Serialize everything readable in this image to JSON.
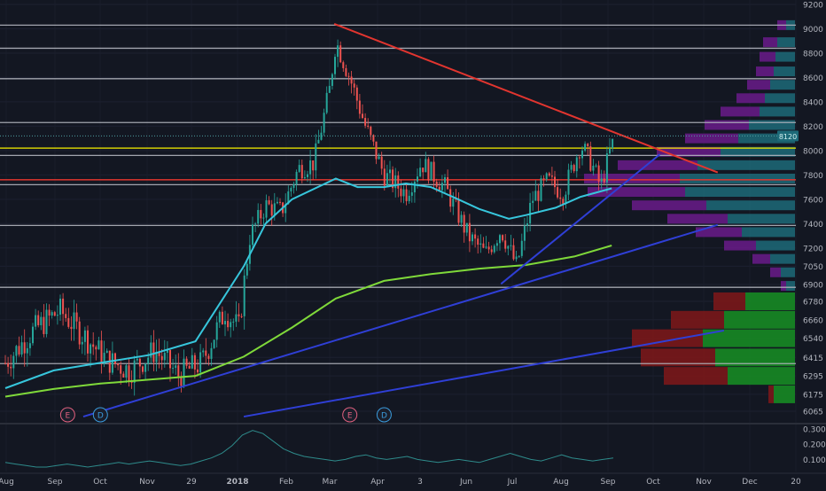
{
  "chart_data": {
    "type": "candlestick",
    "price_axis": {
      "ticks": [
        "9200",
        "9000",
        "8800",
        "8600",
        "8400",
        "8200",
        "8000",
        "7800",
        "7600",
        "7400",
        "7200",
        "7050",
        "6900",
        "6780",
        "6660",
        "6540",
        "6415",
        "6295",
        "6175",
        "6065"
      ],
      "current_price": "8120",
      "current_label": "8120"
    },
    "time_axis": {
      "ticks": [
        "Aug",
        "Sep",
        "Oct",
        "Nov",
        "29",
        "2018",
        "Feb",
        "Mar",
        "Apr",
        "3",
        "Jun",
        "Jul",
        "Aug",
        "Sep",
        "Oct",
        "Nov",
        "Dec",
        "20"
      ]
    },
    "horizontal_levels": [
      {
        "price": 9030,
        "color": "#b2b5be"
      },
      {
        "price": 8840,
        "color": "#b2b5be"
      },
      {
        "price": 8590,
        "color": "#b2b5be"
      },
      {
        "price": 8230,
        "color": "#b2b5be"
      },
      {
        "price": 8020,
        "color": "#e8e100"
      },
      {
        "price": 7960,
        "color": "#b2b5be"
      },
      {
        "price": 7760,
        "color": "#e2352f"
      },
      {
        "price": 7720,
        "color": "#b2b5be"
      },
      {
        "price": 7385,
        "color": "#b2b5be"
      },
      {
        "price": 6880,
        "color": "#b2b5be"
      },
      {
        "price": 6375,
        "color": "#b2b5be"
      }
    ],
    "moving_averages": [
      {
        "color": "#37c6dc",
        "points": [
          [
            "2017-08-01",
            6215
          ],
          [
            "2017-09-01",
            6330
          ],
          [
            "2017-10-01",
            6380
          ],
          [
            "2017-11-01",
            6430
          ],
          [
            "2017-12-01",
            6520
          ],
          [
            "2018-01-01",
            7050
          ],
          [
            "2018-01-15",
            7400
          ],
          [
            "2018-02-01",
            7600
          ],
          [
            "2018-03-01",
            7770
          ],
          [
            "2018-03-15",
            7700
          ],
          [
            "2018-04-01",
            7700
          ],
          [
            "2018-04-15",
            7730
          ],
          [
            "2018-05-01",
            7700
          ],
          [
            "2018-05-15",
            7620
          ],
          [
            "2018-06-01",
            7520
          ],
          [
            "2018-06-20",
            7440
          ],
          [
            "2018-07-01",
            7470
          ],
          [
            "2018-07-20",
            7530
          ],
          [
            "2018-08-05",
            7620
          ],
          [
            "2018-08-25",
            7690
          ]
        ]
      },
      {
        "color": "#7fd93a",
        "points": [
          [
            "2017-08-01",
            6160
          ],
          [
            "2017-09-01",
            6210
          ],
          [
            "2017-10-01",
            6245
          ],
          [
            "2017-11-01",
            6270
          ],
          [
            "2017-12-01",
            6295
          ],
          [
            "2018-01-01",
            6420
          ],
          [
            "2018-02-01",
            6610
          ],
          [
            "2018-03-01",
            6800
          ],
          [
            "2018-04-01",
            6930
          ],
          [
            "2018-05-01",
            6985
          ],
          [
            "2018-06-01",
            7030
          ],
          [
            "2018-07-01",
            7060
          ],
          [
            "2018-08-01",
            7130
          ],
          [
            "2018-08-25",
            7220
          ]
        ]
      }
    ],
    "trend_lines": [
      {
        "color": "#e2352f",
        "from": [
          "2018-02-28",
          9040
        ],
        "to": [
          "2018-11-01",
          7820
        ]
      },
      {
        "color": "#2f3fd6",
        "from": [
          "2017-09-20",
          6030
        ],
        "to": [
          "2018-11-01",
          7390
        ]
      },
      {
        "color": "#2f3fd6",
        "from": [
          "2018-06-15",
          6905
        ],
        "to": [
          "2018-09-25",
          7970
        ]
      },
      {
        "color": "#2f3fd6",
        "from": [
          "2018-01-01",
          6030
        ],
        "to": [
          "2018-11-05",
          6590
        ]
      }
    ],
    "events": [
      {
        "date": "2017-09-10",
        "label": "E",
        "kind": "earnings"
      },
      {
        "date": "2017-10-01",
        "label": "D",
        "kind": "dividend"
      },
      {
        "date": "2018-03-10",
        "label": "E",
        "kind": "earnings"
      },
      {
        "date": "2018-04-01",
        "label": "D",
        "kind": "dividend"
      }
    ],
    "volume_profile": {
      "upper": [
        {
          "y": 9030,
          "up": 0.05,
          "down": 0.05
        },
        {
          "y": 8890,
          "up": 0.1,
          "down": 0.08
        },
        {
          "y": 8770,
          "up": 0.11,
          "down": 0.09
        },
        {
          "y": 8650,
          "up": 0.12,
          "down": 0.1
        },
        {
          "y": 8540,
          "up": 0.14,
          "down": 0.13
        },
        {
          "y": 8430,
          "up": 0.17,
          "down": 0.16
        },
        {
          "y": 8320,
          "up": 0.2,
          "down": 0.22
        },
        {
          "y": 8210,
          "up": 0.26,
          "down": 0.25
        },
        {
          "y": 8100,
          "up": 0.32,
          "down": 0.3
        },
        {
          "y": 7990,
          "up": 0.42,
          "down": 0.36
        },
        {
          "y": 7880,
          "up": 0.55,
          "down": 0.45
        },
        {
          "y": 7770,
          "up": 0.65,
          "down": 0.54
        },
        {
          "y": 7660,
          "up": 0.62,
          "down": 0.55
        },
        {
          "y": 7550,
          "up": 0.5,
          "down": 0.42
        },
        {
          "y": 7440,
          "up": 0.38,
          "down": 0.34
        },
        {
          "y": 7330,
          "up": 0.3,
          "down": 0.26
        },
        {
          "y": 7220,
          "up": 0.22,
          "down": 0.18
        },
        {
          "y": 7110,
          "up": 0.14,
          "down": 0.1
        },
        {
          "y": 7000,
          "up": 0.08,
          "down": 0.06
        },
        {
          "y": 6890,
          "up": 0.05,
          "down": 0.03
        }
      ],
      "lower": [
        {
          "y": 6780,
          "up": 0.28,
          "down": 0.18
        },
        {
          "y": 6660,
          "up": 0.4,
          "down": 0.3
        },
        {
          "y": 6540,
          "up": 0.52,
          "down": 0.4
        },
        {
          "y": 6415,
          "up": 0.45,
          "down": 0.42
        },
        {
          "y": 6295,
          "up": 0.38,
          "down": 0.36
        },
        {
          "y": 6175,
          "up": 0.12,
          "down": 0.03
        }
      ]
    },
    "indicator": {
      "ticks": [
        "0.3000",
        "0.2000",
        "0.1000"
      ],
      "values": [
        0.08,
        0.07,
        0.06,
        0.05,
        0.05,
        0.06,
        0.07,
        0.06,
        0.05,
        0.06,
        0.07,
        0.08,
        0.07,
        0.08,
        0.09,
        0.08,
        0.07,
        0.06,
        0.07,
        0.09,
        0.11,
        0.14,
        0.19,
        0.26,
        0.29,
        0.27,
        0.22,
        0.17,
        0.14,
        0.12,
        0.11,
        0.1,
        0.09,
        0.1,
        0.12,
        0.13,
        0.11,
        0.1,
        0.11,
        0.12,
        0.1,
        0.09,
        0.08,
        0.09,
        0.1,
        0.09,
        0.08,
        0.1,
        0.12,
        0.14,
        0.12,
        0.1,
        0.09,
        0.11,
        0.13,
        0.11,
        0.1,
        0.09,
        0.1,
        0.11
      ]
    }
  }
}
